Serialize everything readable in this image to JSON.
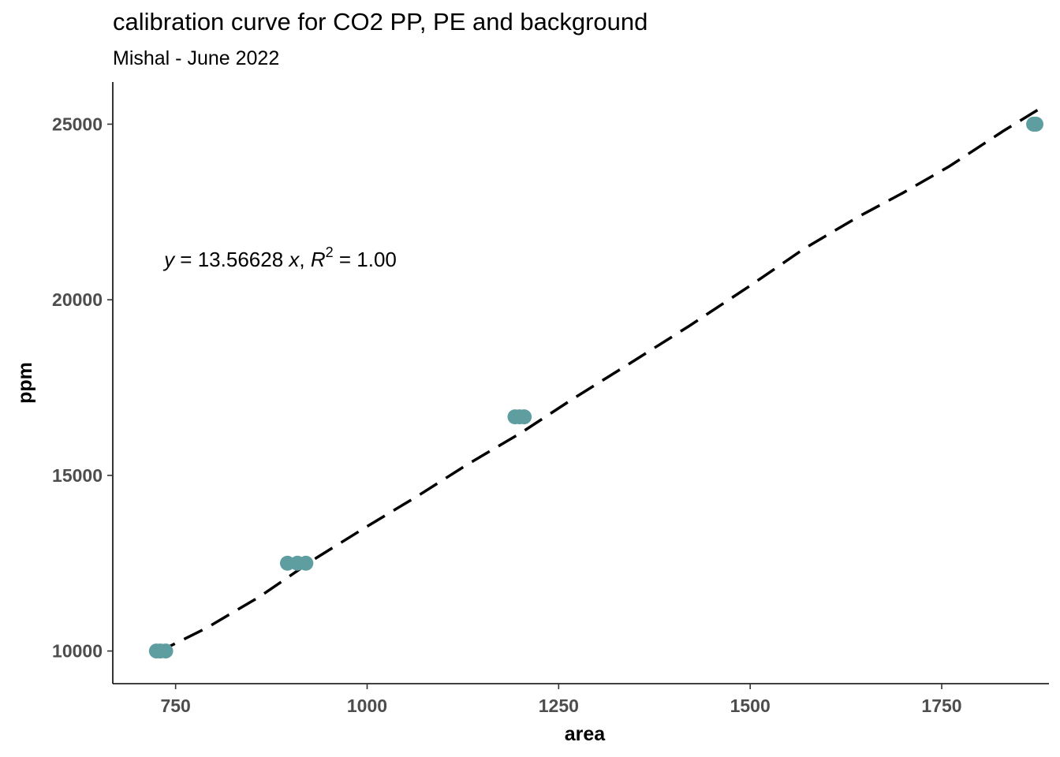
{
  "chart_data": {
    "type": "scatter",
    "title": "calibration curve for CO2 PP, PE and background",
    "subtitle": "Mishal - June 2022",
    "xlabel": "area",
    "ylabel": "ppm",
    "xlim": [
      668,
      1890
    ],
    "ylim": [
      9070,
      26200
    ],
    "x_ticks": [
      750,
      1000,
      1250,
      1500,
      1750
    ],
    "x_tick_labels": [
      "750",
      "1000",
      "1250",
      "1500",
      "1750"
    ],
    "y_ticks": [
      10000,
      15000,
      20000,
      25000
    ],
    "y_tick_labels": [
      "10000",
      "15000",
      "20000",
      "25000"
    ],
    "grid": false,
    "point_color": "#5f9ea0",
    "line_color": "#000000",
    "points": [
      {
        "x": 725,
        "y": 10000
      },
      {
        "x": 730,
        "y": 10000
      },
      {
        "x": 737,
        "y": 10000
      },
      {
        "x": 896,
        "y": 12500
      },
      {
        "x": 909,
        "y": 12500
      },
      {
        "x": 920,
        "y": 12500
      },
      {
        "x": 1193,
        "y": 16667
      },
      {
        "x": 1199,
        "y": 16667
      },
      {
        "x": 1205,
        "y": 16667
      },
      {
        "x": 1870,
        "y": 25000
      },
      {
        "x": 1873,
        "y": 25000
      }
    ],
    "fit_line": {
      "x": [
        725,
        790,
        860,
        930,
        1000,
        1065,
        1130,
        1200,
        1270,
        1340,
        1420,
        1500,
        1570,
        1640,
        1700,
        1760,
        1830,
        1875
      ],
      "y": [
        9950,
        10650,
        11550,
        12600,
        13550,
        14400,
        15300,
        16200,
        17200,
        18150,
        19250,
        20400,
        21450,
        22350,
        23050,
        23800,
        24800,
        25400
      ]
    },
    "annotation": {
      "y_var": "y",
      "eq_text": " = 13.56628 ",
      "x_var": "x",
      "comma": ", ",
      "r_var": "R",
      "r_sup": "2",
      "r_text": " = 1.00",
      "x": 735,
      "y": 21150
    }
  }
}
